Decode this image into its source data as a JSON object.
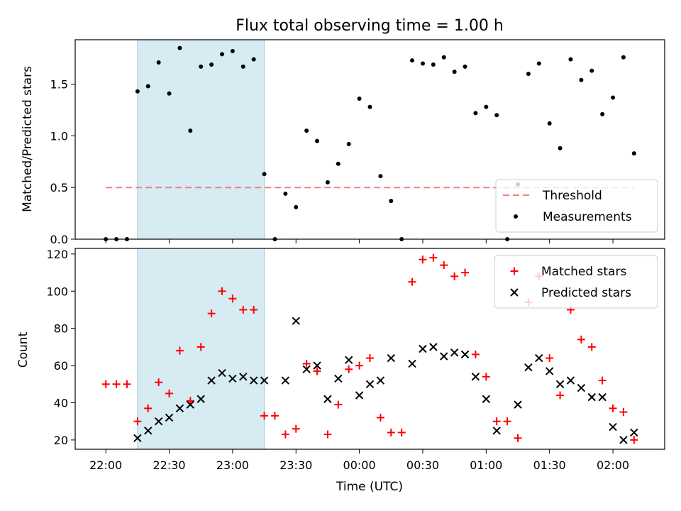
{
  "chart_data": [
    {
      "type": "scatter",
      "title": "Flux total observing time = 1.00 h",
      "ylabel": "Matched/Predicted stars",
      "xlabel": "",
      "ylim": [
        0,
        1.93
      ],
      "yticks": [
        "0.0",
        "0.5",
        "1.0",
        "1.5"
      ],
      "shaded_interval": [
        "22:15",
        "23:15"
      ],
      "legend_position": "lower-right",
      "threshold": {
        "name": "Threshold",
        "value": 0.5,
        "x": [
          "22:00",
          "02:10"
        ],
        "color": "#f08080"
      },
      "series": [
        {
          "name": "Measurements",
          "color": "#000000",
          "x": [
            "22:00",
            "22:05",
            "22:10",
            "22:15",
            "22:20",
            "22:25",
            "22:30",
            "22:35",
            "22:40",
            "22:45",
            "22:50",
            "22:55",
            "23:00",
            "23:05",
            "23:10",
            "23:15",
            "23:20",
            "23:25",
            "23:30",
            "23:35",
            "23:40",
            "23:45",
            "23:50",
            "23:55",
            "00:00",
            "00:05",
            "00:10",
            "00:15",
            "00:20",
            "00:25",
            "00:30",
            "00:35",
            "00:40",
            "00:45",
            "00:50",
            "00:55",
            "01:00",
            "01:05",
            "01:10",
            "01:15",
            "01:20",
            "01:25",
            "01:30",
            "01:35",
            "01:40",
            "01:45",
            "01:50",
            "01:55",
            "02:00",
            "02:05",
            "02:10"
          ],
          "y": [
            0.0,
            0.0,
            0.0,
            1.43,
            1.48,
            1.71,
            1.41,
            1.85,
            1.05,
            1.67,
            1.69,
            1.79,
            1.82,
            1.67,
            1.74,
            0.63,
            0.0,
            0.44,
            0.31,
            1.05,
            0.95,
            0.55,
            0.73,
            0.92,
            1.36,
            1.28,
            0.61,
            0.37,
            0.0,
            1.73,
            1.7,
            1.69,
            1.76,
            1.62,
            1.67,
            1.22,
            1.28,
            1.2,
            0.0,
            0.53,
            1.6,
            1.7,
            1.12,
            0.88,
            1.74,
            1.54,
            1.63,
            1.21,
            1.37,
            1.76,
            0.83
          ]
        }
      ]
    },
    {
      "type": "scatter",
      "title": "",
      "ylabel": "Count",
      "xlabel": "Time (UTC)",
      "ylim": [
        15,
        123
      ],
      "yticks": [
        "20",
        "40",
        "60",
        "80",
        "100",
        "120"
      ],
      "xticks": [
        "22:00",
        "22:30",
        "23:00",
        "23:30",
        "00:00",
        "00:30",
        "01:00",
        "01:30",
        "02:00"
      ],
      "shaded_interval": [
        "22:15",
        "23:15"
      ],
      "legend_position": "upper-right",
      "series": [
        {
          "name": "Matched stars",
          "marker": "+",
          "color": "#ff0000",
          "x": [
            "22:00",
            "22:05",
            "22:10",
            "22:15",
            "22:20",
            "22:25",
            "22:30",
            "22:35",
            "22:40",
            "22:45",
            "22:50",
            "22:55",
            "23:00",
            "23:05",
            "23:10",
            "23:15",
            "23:20",
            "23:25",
            "23:30",
            "23:35",
            "23:40",
            "23:45",
            "23:50",
            "23:55",
            "00:00",
            "00:05",
            "00:10",
            "00:15",
            "00:20",
            "00:25",
            "00:30",
            "00:35",
            "00:40",
            "00:45",
            "00:50",
            "00:55",
            "01:00",
            "01:05",
            "01:10",
            "01:15",
            "01:20",
            "01:25",
            "01:30",
            "01:35",
            "01:40",
            "01:45",
            "01:50",
            "01:55",
            "02:00",
            "02:05",
            "02:10"
          ],
          "y": [
            50,
            50,
            50,
            30,
            37,
            51,
            45,
            68,
            41,
            70,
            88,
            100,
            96,
            90,
            90,
            33,
            33,
            23,
            26,
            61,
            57,
            23,
            39,
            58,
            60,
            64,
            32,
            24,
            24,
            105,
            117,
            118,
            114,
            108,
            110,
            66,
            54,
            30,
            30,
            21,
            94,
            108,
            64,
            44,
            90,
            74,
            70,
            52,
            37,
            35,
            20
          ]
        },
        {
          "name": "Predicted stars",
          "marker": "x",
          "color": "#000000",
          "x": [
            "22:15",
            "22:20",
            "22:25",
            "22:30",
            "22:35",
            "22:40",
            "22:45",
            "22:50",
            "22:55",
            "23:00",
            "23:05",
            "23:10",
            "23:15",
            "23:25",
            "23:30",
            "23:35",
            "23:40",
            "23:45",
            "23:50",
            "23:55",
            "00:00",
            "00:05",
            "00:10",
            "00:15",
            "00:25",
            "00:30",
            "00:35",
            "00:40",
            "00:45",
            "00:50",
            "00:55",
            "01:00",
            "01:05",
            "01:15",
            "01:20",
            "01:25",
            "01:30",
            "01:35",
            "01:40",
            "01:45",
            "01:50",
            "01:55",
            "02:00",
            "02:05",
            "02:10"
          ],
          "y": [
            21,
            25,
            30,
            32,
            37,
            39,
            42,
            52,
            56,
            53,
            54,
            52,
            52,
            52,
            84,
            58,
            60,
            42,
            53,
            63,
            44,
            50,
            52,
            64,
            61,
            69,
            70,
            65,
            67,
            66,
            54,
            42,
            25,
            39,
            59,
            64,
            57,
            50,
            52,
            48,
            43,
            43,
            27,
            20,
            24
          ]
        }
      ]
    }
  ]
}
